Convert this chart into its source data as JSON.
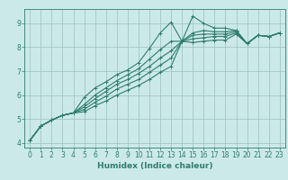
{
  "xlabel": "Humidex (Indice chaleur)",
  "ylabel": "",
  "background_color": "#cce9e9",
  "grid_color": "#aacccc",
  "line_color": "#2e7d6e",
  "xlim": [
    -0.5,
    23.5
  ],
  "ylim": [
    3.8,
    9.6
  ],
  "xticks": [
    0,
    1,
    2,
    3,
    4,
    5,
    6,
    7,
    8,
    9,
    10,
    11,
    12,
    13,
    14,
    15,
    16,
    17,
    18,
    19,
    20,
    21,
    22,
    23
  ],
  "yticks": [
    4,
    5,
    6,
    7,
    8,
    9
  ],
  "lines": [
    {
      "x": [
        0,
        1,
        2,
        3,
        4,
        5,
        6,
        7,
        8,
        9,
        10,
        11,
        12,
        13,
        14,
        15,
        16,
        17,
        18,
        19,
        20,
        21,
        22,
        23
      ],
      "y": [
        4.1,
        4.7,
        4.95,
        5.15,
        5.25,
        5.9,
        6.3,
        6.55,
        6.85,
        7.05,
        7.35,
        7.95,
        8.6,
        9.05,
        8.25,
        9.3,
        9.0,
        8.8,
        8.8,
        8.7,
        8.15,
        8.5,
        8.45,
        8.6
      ]
    },
    {
      "x": [
        0,
        1,
        2,
        3,
        4,
        5,
        6,
        7,
        8,
        9,
        10,
        11,
        12,
        13,
        14,
        15,
        16,
        17,
        18,
        19,
        20,
        21,
        22,
        23
      ],
      "y": [
        4.1,
        4.7,
        4.95,
        5.15,
        5.25,
        5.6,
        6.0,
        6.3,
        6.6,
        6.85,
        7.1,
        7.5,
        7.9,
        8.25,
        8.25,
        8.6,
        8.7,
        8.65,
        8.65,
        8.7,
        8.15,
        8.5,
        8.45,
        8.6
      ]
    },
    {
      "x": [
        0,
        1,
        2,
        3,
        4,
        5,
        6,
        7,
        8,
        9,
        10,
        11,
        12,
        13,
        14,
        15,
        16,
        17,
        18,
        19,
        20,
        21,
        22,
        23
      ],
      "y": [
        4.1,
        4.7,
        4.95,
        5.15,
        5.25,
        5.5,
        5.85,
        6.15,
        6.45,
        6.65,
        6.9,
        7.2,
        7.55,
        7.85,
        8.25,
        8.5,
        8.55,
        8.55,
        8.55,
        8.65,
        8.15,
        8.5,
        8.45,
        8.6
      ]
    },
    {
      "x": [
        0,
        1,
        2,
        3,
        4,
        5,
        6,
        7,
        8,
        9,
        10,
        11,
        12,
        13,
        14,
        15,
        16,
        17,
        18,
        19,
        20,
        21,
        22,
        23
      ],
      "y": [
        4.1,
        4.7,
        4.95,
        5.15,
        5.25,
        5.4,
        5.7,
        5.95,
        6.25,
        6.45,
        6.65,
        6.95,
        7.25,
        7.55,
        8.25,
        8.35,
        8.4,
        8.45,
        8.45,
        8.6,
        8.15,
        8.5,
        8.45,
        8.6
      ]
    },
    {
      "x": [
        0,
        1,
        2,
        3,
        4,
        5,
        6,
        7,
        8,
        9,
        10,
        11,
        12,
        13,
        14,
        15,
        16,
        17,
        18,
        19,
        20,
        21,
        22,
        23
      ],
      "y": [
        4.1,
        4.7,
        4.95,
        5.15,
        5.25,
        5.3,
        5.55,
        5.75,
        6.0,
        6.2,
        6.4,
        6.65,
        6.95,
        7.2,
        8.25,
        8.2,
        8.25,
        8.3,
        8.3,
        8.55,
        8.15,
        8.5,
        8.45,
        8.6
      ]
    }
  ],
  "marker": "+",
  "markersize": 3,
  "linewidth": 0.8,
  "tick_fontsize": 5.5,
  "xlabel_fontsize": 6.5
}
